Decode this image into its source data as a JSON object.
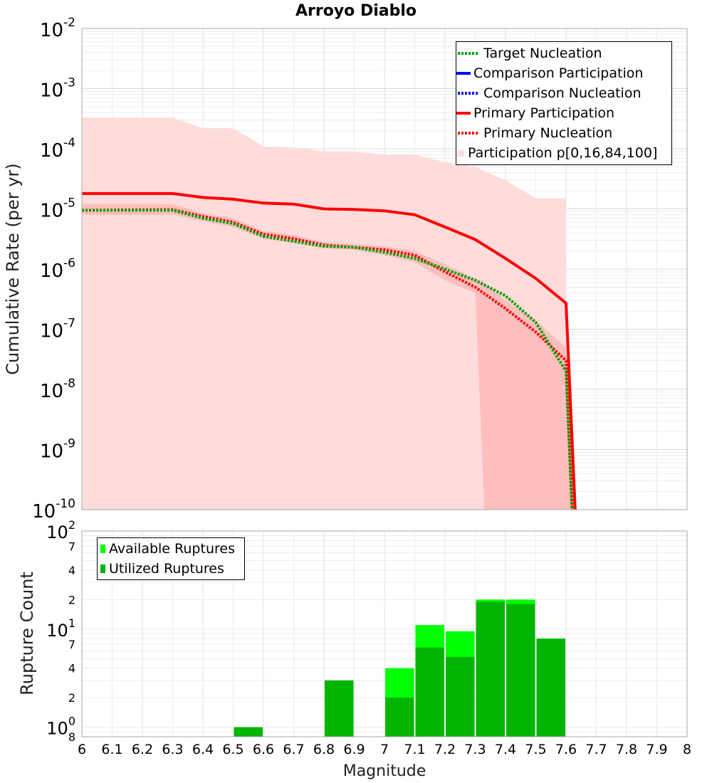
{
  "title": "Arroyo Diablo",
  "colors": {
    "target": "#00a000",
    "comparison": "#0000ff",
    "primary": "#ff0000",
    "band_outer": "#ffdcdc",
    "band_inner": "#ffbebe",
    "available": "#00ff00",
    "utilized": "#00b400"
  },
  "chart_data": [
    {
      "type": "line",
      "title": "Arroyo Diablo",
      "xlabel": "",
      "ylabel": "Cumulative Rate (per yr)",
      "xlim": [
        6,
        8
      ],
      "ylim_exponents": [
        -10,
        -2
      ],
      "yscale": "log",
      "y_tick_bases": [
        "10",
        "10",
        "10",
        "10",
        "10",
        "10",
        "10",
        "10",
        "10"
      ],
      "y_tick_exponents": [
        "-2",
        "-3",
        "-4",
        "-5",
        "-6",
        "-7",
        "-8",
        "-9",
        "-10"
      ],
      "legend": {
        "position": "top-right",
        "entries": [
          {
            "label": "Target Nucleation",
            "style": "dotted",
            "color": "#00a000"
          },
          {
            "label": "Comparison Participation",
            "style": "solid",
            "color": "#0000ff"
          },
          {
            "label": "Comparison Nucleation",
            "style": "dotted",
            "color": "#0000ff"
          },
          {
            "label": "Primary Participation",
            "style": "solid",
            "color": "#ff0000"
          },
          {
            "label": "Primary Nucleation",
            "style": "dotted",
            "color": "#ff0000"
          },
          {
            "label": "Participation p[0,16,84,100]",
            "style": "fill",
            "color": "#ffdcdc"
          }
        ]
      },
      "series": [
        {
          "name": "Primary Participation",
          "x": [
            6.0,
            6.3,
            6.4,
            6.5,
            6.6,
            6.7,
            6.8,
            6.9,
            7.0,
            7.1,
            7.2,
            7.3,
            7.4,
            7.5,
            7.6,
            7.63
          ],
          "y": [
            1.8e-05,
            1.8e-05,
            1.55e-05,
            1.45e-05,
            1.25e-05,
            1.2e-05,
            1e-05,
            9.8e-06,
            9.3e-06,
            8e-06,
            5e-06,
            3.1e-06,
            1.5e-06,
            7e-07,
            2.7e-07,
            1e-10
          ]
        },
        {
          "name": "Primary Nucleation",
          "x": [
            6.0,
            6.3,
            6.4,
            6.5,
            6.6,
            6.7,
            6.8,
            6.9,
            7.0,
            7.1,
            7.2,
            7.3,
            7.4,
            7.5,
            7.6,
            7.62
          ],
          "y": [
            9.5e-06,
            9.7e-06,
            7.5e-06,
            6e-06,
            3.8e-06,
            3.2e-06,
            2.5e-06,
            2.3e-06,
            2.1e-06,
            1.7e-06,
            9e-07,
            5e-07,
            2.2e-07,
            9e-08,
            3e-08,
            1e-10
          ]
        },
        {
          "name": "Target Nucleation",
          "x": [
            6.0,
            6.3,
            6.4,
            6.5,
            6.6,
            6.7,
            6.8,
            6.9,
            7.0,
            7.1,
            7.2,
            7.3,
            7.4,
            7.5,
            7.6,
            7.62
          ],
          "y": [
            9.5e-06,
            9.5e-06,
            7e-06,
            5.7e-06,
            3.5e-06,
            2.9e-06,
            2.4e-06,
            2.3e-06,
            1.9e-06,
            1.5e-06,
            1e-06,
            6.5e-07,
            3.6e-07,
            1.3e-07,
            2e-08,
            1e-10
          ]
        }
      ],
      "band_outer": {
        "x": [
          6.0,
          6.3,
          6.4,
          6.5,
          6.6,
          6.7,
          6.8,
          6.9,
          7.0,
          7.1,
          7.2,
          7.3,
          7.4,
          7.5,
          7.6
        ],
        "upper": [
          0.00033,
          0.00033,
          0.00022,
          0.00022,
          0.00011,
          0.000105,
          9e-05,
          9e-05,
          8e-05,
          8e-05,
          6e-05,
          5e-05,
          3e-05,
          1.5e-05,
          1.5e-05
        ],
        "lower": [
          1e-10,
          1e-10,
          1e-10,
          1e-10,
          1e-10,
          1e-10,
          1e-10,
          1e-10,
          1e-10,
          1e-10,
          1e-10,
          1e-10,
          1e-10,
          1e-10,
          1e-10
        ]
      },
      "band_inner": {
        "x": [
          6.0,
          6.3,
          6.4,
          6.5,
          6.6,
          6.7,
          6.8,
          6.9,
          7.0,
          7.1,
          7.2,
          7.3,
          7.33,
          7.4,
          7.5,
          7.6,
          7.63
        ],
        "upper": [
          1.2e-05,
          1.2e-05,
          8.5e-06,
          7e-06,
          4.3e-06,
          3.7e-06,
          2.8e-06,
          2.6e-06,
          2.4e-06,
          2e-06,
          1.2e-06,
          7e-07,
          6e-07,
          3e-07,
          1.4e-07,
          5e-08,
          1e-10
        ],
        "lower": [
          8e-06,
          8e-06,
          6.3e-06,
          5e-06,
          3.2e-06,
          2.7e-06,
          2.2e-06,
          2.1e-06,
          1.7e-06,
          1.3e-06,
          6.5e-07,
          4e-07,
          1e-10,
          1e-10,
          1e-10,
          1e-10,
          1e-10
        ]
      }
    },
    {
      "type": "bar",
      "xlabel": "Magnitude",
      "ylabel": "Rupture Count",
      "xlim": [
        6,
        8
      ],
      "yscale": "log",
      "ylim": [
        0.8,
        100
      ],
      "x_ticks": [
        "6",
        "6.1",
        "6.2",
        "6.3",
        "6.4",
        "6.5",
        "6.6",
        "6.7",
        "6.8",
        "6.9",
        "7",
        "7.1",
        "7.2",
        "7.3",
        "7.4",
        "7.5",
        "7.6",
        "7.7",
        "7.8",
        "7.9",
        "8"
      ],
      "y_tick_labels": [
        {
          "value": 100,
          "base": "10",
          "exp": "2"
        },
        {
          "value": 70,
          "base": "7",
          "exp": ""
        },
        {
          "value": 40,
          "base": "4",
          "exp": ""
        },
        {
          "value": 20,
          "base": "2",
          "exp": ""
        },
        {
          "value": 10,
          "base": "10",
          "exp": "1"
        },
        {
          "value": 7,
          "base": "7",
          "exp": ""
        },
        {
          "value": 4,
          "base": "4",
          "exp": ""
        },
        {
          "value": 2,
          "base": "2",
          "exp": ""
        },
        {
          "value": 1,
          "base": "10",
          "exp": "0"
        },
        {
          "value": 0.8,
          "base": "8",
          "exp": ""
        }
      ],
      "legend": {
        "position": "top-left",
        "entries": [
          {
            "label": "Available Ruptures",
            "color": "#00ff00"
          },
          {
            "label": "Utilized Ruptures",
            "color": "#00b400"
          }
        ]
      },
      "bin_width": 0.1,
      "bin_starts": [
        6.5,
        6.8,
        7.0,
        7.1,
        7.2,
        7.3,
        7.4,
        7.5
      ],
      "available": [
        1,
        3,
        4,
        11,
        9.5,
        20,
        20,
        8
      ],
      "utilized": [
        1,
        3,
        2,
        6.5,
        5.2,
        19,
        18,
        8
      ]
    }
  ]
}
